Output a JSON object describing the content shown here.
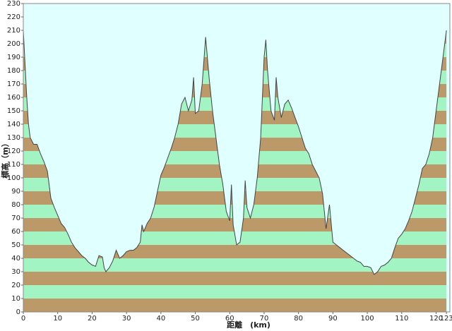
{
  "chart_data": {
    "type": "area",
    "xlabel": "距離　(km)",
    "ylabel": "標高（m）",
    "x": [
      0,
      0.5,
      1,
      1.5,
      2,
      3,
      4,
      5,
      6,
      7,
      7.5,
      8,
      9,
      10,
      11,
      12,
      13,
      14,
      15,
      16,
      17,
      18,
      19,
      20,
      21,
      22,
      23,
      23.5,
      24,
      25,
      26,
      27,
      28,
      29,
      30,
      31,
      32,
      33,
      34,
      34.5,
      35,
      36,
      37,
      38,
      39,
      40,
      41,
      42,
      43,
      44,
      45,
      46,
      47,
      48,
      49,
      49.5,
      50,
      51,
      52,
      53,
      54,
      55,
      56,
      57,
      58,
      59,
      60,
      60.5,
      61,
      62,
      63,
      64,
      64.5,
      65,
      66,
      67,
      68,
      69,
      70,
      70.5,
      71,
      72,
      73,
      73.5,
      74,
      75,
      76,
      77,
      78,
      79,
      80,
      81,
      82,
      83,
      84,
      85,
      86,
      87,
      88,
      89,
      90,
      91,
      92,
      93,
      94,
      95,
      96,
      97,
      98,
      99,
      100,
      101,
      102,
      103,
      104,
      105,
      106,
      107,
      108,
      109,
      110,
      111,
      112,
      113,
      114,
      115,
      116,
      117,
      118,
      119,
      120,
      121,
      122,
      123
    ],
    "values": [
      210,
      185,
      160,
      140,
      130,
      125,
      125,
      118,
      112,
      105,
      95,
      85,
      78,
      72,
      66,
      63,
      58,
      52,
      48,
      45,
      42,
      40,
      37,
      35,
      34,
      42,
      41,
      33,
      30,
      33,
      38,
      46,
      40,
      42,
      45,
      46,
      46,
      48,
      52,
      65,
      60,
      66,
      70,
      78,
      90,
      102,
      108,
      115,
      122,
      130,
      140,
      155,
      160,
      150,
      158,
      175,
      148,
      150,
      170,
      205,
      175,
      150,
      130,
      110,
      95,
      75,
      68,
      95,
      65,
      50,
      52,
      70,
      98,
      78,
      70,
      80,
      100,
      130,
      190,
      203,
      180,
      150,
      143,
      175,
      160,
      145,
      155,
      158,
      152,
      145,
      138,
      130,
      122,
      118,
      110,
      105,
      100,
      88,
      62,
      80,
      52,
      50,
      48,
      46,
      44,
      42,
      40,
      38,
      37,
      34,
      34,
      33,
      28,
      30,
      34,
      35,
      37,
      40,
      48,
      55,
      58,
      62,
      68,
      75,
      85,
      95,
      107,
      110,
      118,
      130,
      150,
      170,
      190,
      210
    ],
    "xlim": [
      0,
      124
    ],
    "ylim": [
      0,
      230
    ],
    "xticks": [
      0,
      10,
      20,
      30,
      40,
      50,
      60,
      70,
      80,
      90,
      100,
      110,
      120,
      123
    ],
    "yticks": [
      0,
      10,
      20,
      30,
      40,
      50,
      60,
      70,
      80,
      90,
      100,
      110,
      120,
      130,
      140,
      150,
      160,
      170,
      180,
      190,
      200,
      210,
      220,
      230
    ],
    "stripe_colors": [
      "#bb9968",
      "#a2f4c2"
    ],
    "background": "#e0ffff",
    "line_color": "#444444"
  }
}
